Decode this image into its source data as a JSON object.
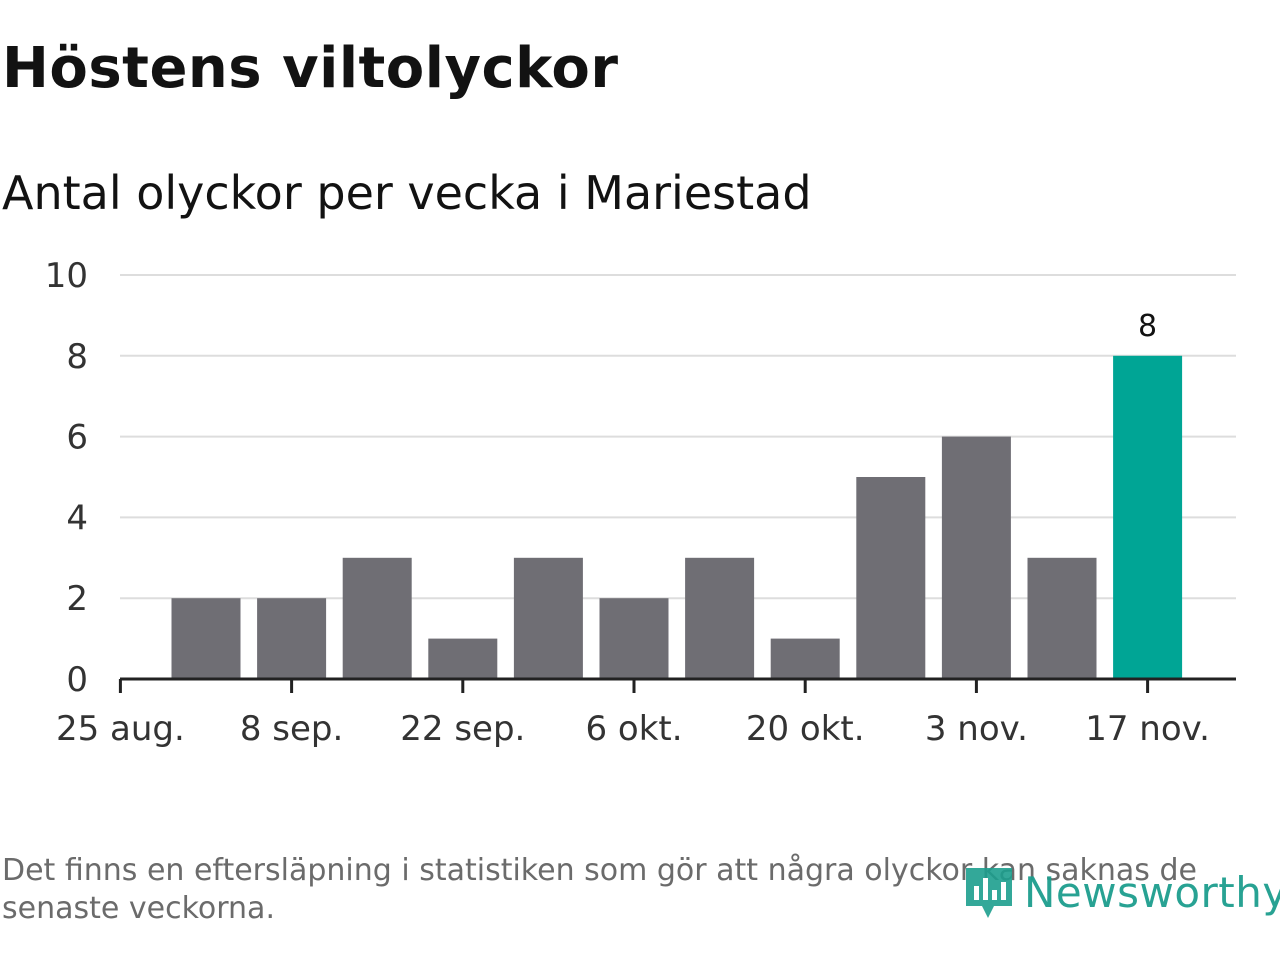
{
  "chart_data": {
    "type": "bar",
    "title": "Höstens viltolyckor",
    "subtitle": "Antal olyckor per vecka i Mariestad",
    "xlabel": "",
    "ylabel": "",
    "ylim": [
      0,
      10
    ],
    "yticks": [
      "0",
      "2",
      "4",
      "6",
      "8",
      "10"
    ],
    "xticks": [
      "25 aug.",
      "8 sep.",
      "22 sep.",
      "6 okt.",
      "20 okt.",
      "3 nov.",
      "17 nov."
    ],
    "bars": [
      {
        "week": "1 sep.",
        "value": 2
      },
      {
        "week": "8 sep.",
        "value": 2
      },
      {
        "week": "15 sep.",
        "value": 3
      },
      {
        "week": "22 sep.",
        "value": 1
      },
      {
        "week": "29 sep.",
        "value": 3
      },
      {
        "week": "6 okt.",
        "value": 2
      },
      {
        "week": "13 okt.",
        "value": 3
      },
      {
        "week": "20 okt.",
        "value": 1
      },
      {
        "week": "27 okt.",
        "value": 5
      },
      {
        "week": "3 nov.",
        "value": 6
      },
      {
        "week": "10 nov.",
        "value": 3
      },
      {
        "week": "17 nov.",
        "value": 8
      }
    ],
    "highlight_label": "8",
    "grid": true,
    "colors": {
      "bar": "#6f6e74",
      "highlight": "#00a595",
      "grid": "#dddddd",
      "axis": "#222222"
    }
  },
  "footnote": "Det finns en eftersläpning i statistiken som gör att några olyckor kan saknas de senaste veckorna.",
  "logo": {
    "text": "Newsworthy",
    "icon": "newsworthy-logo-icon"
  }
}
